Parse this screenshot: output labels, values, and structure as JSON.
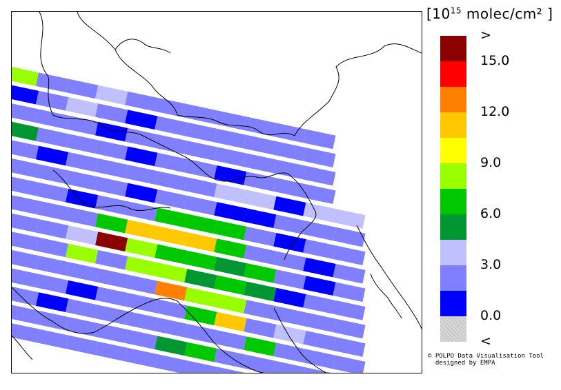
{
  "legend": {
    "unit_prefix": "[10",
    "unit_exponent": "15",
    "unit_suffix": " molec/cm² ]",
    "swatches": [
      {
        "color": "#8b0000",
        "label": ">"
      },
      {
        "color": "#ff0000",
        "label": "15.0"
      },
      {
        "color": "#ff8000",
        "label": ""
      },
      {
        "color": "#ffc800",
        "label": "12.0"
      },
      {
        "color": "#ffff00",
        "label": ""
      },
      {
        "color": "#99ff00",
        "label": "9.0"
      },
      {
        "color": "#00c800",
        "label": ""
      },
      {
        "color": "#009632",
        "label": "6.0"
      },
      {
        "color": "#c0c0ff",
        "label": ""
      },
      {
        "color": "#8080ff",
        "label": "3.0"
      },
      {
        "color": "#0000ff",
        "label": ""
      },
      {
        "color": "#c8c8c8",
        "label": "0.0"
      },
      {
        "color": "",
        "label": "<"
      }
    ]
  },
  "credit": {
    "line1": "© POLPO Data Visualisation Tool",
    "line2": "designed by EMPA"
  },
  "palette": {
    "b": "#0000ff",
    "m": "#8080ff",
    "l": "#c0c0ff",
    "d": "#009632",
    "g": "#00c800",
    "y": "#99ff00",
    "o": "#ffc800",
    "r": "#ff8000",
    "x": "#8b0000"
  },
  "swath_rows": [
    "ymmlmmmmmmm",
    "bmlmbmmmmmm",
    "mmmbmmmmmmm",
    "dmmmbmmbmmm",
    "mbmmmmmllbll",
    "mmmmbmmbbmmm",
    "mmbmmgggmbmm",
    "mmmgooogmmbm",
    "mmlxyggdgmbm",
    "mmymyydgdbmm",
    "mmmmmryymmmm",
    "mmbmmmgomlmm",
    "mbmmmmmmgmmm",
    "mmmmmdgmmmmm",
    "mmmmmmmmmmm"
  ]
}
